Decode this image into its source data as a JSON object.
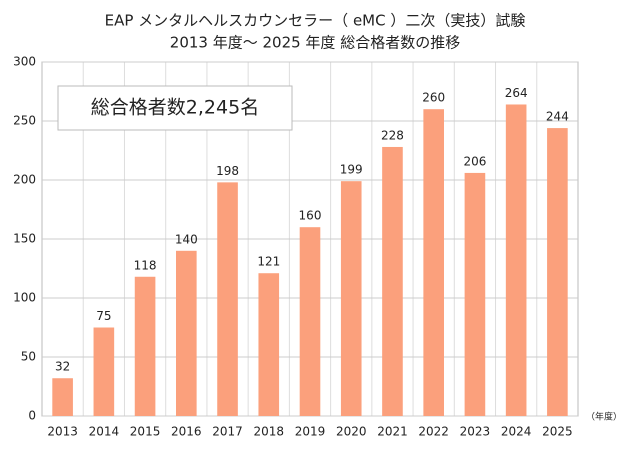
{
  "chart_data": {
    "type": "bar",
    "title": "EAP メンタルヘルスカウンセラー（ eMC ）二次（実技）試験",
    "subtitle": "2013 年度～ 2025 年度 総合格者数の推移",
    "annotation": "総合格者数2,245名",
    "x_label": "（年度）",
    "categories": [
      "2013",
      "2014",
      "2015",
      "2016",
      "2017",
      "2018",
      "2019",
      "2020",
      "2021",
      "2022",
      "2023",
      "2024",
      "2025"
    ],
    "values": [
      32,
      75,
      118,
      140,
      198,
      121,
      160,
      199,
      228,
      260,
      206,
      264,
      244
    ],
    "color": "#fba07c",
    "ylim": [
      0,
      300
    ],
    "yticks": [
      0,
      50,
      100,
      150,
      200,
      250,
      300
    ],
    "grid": true
  }
}
